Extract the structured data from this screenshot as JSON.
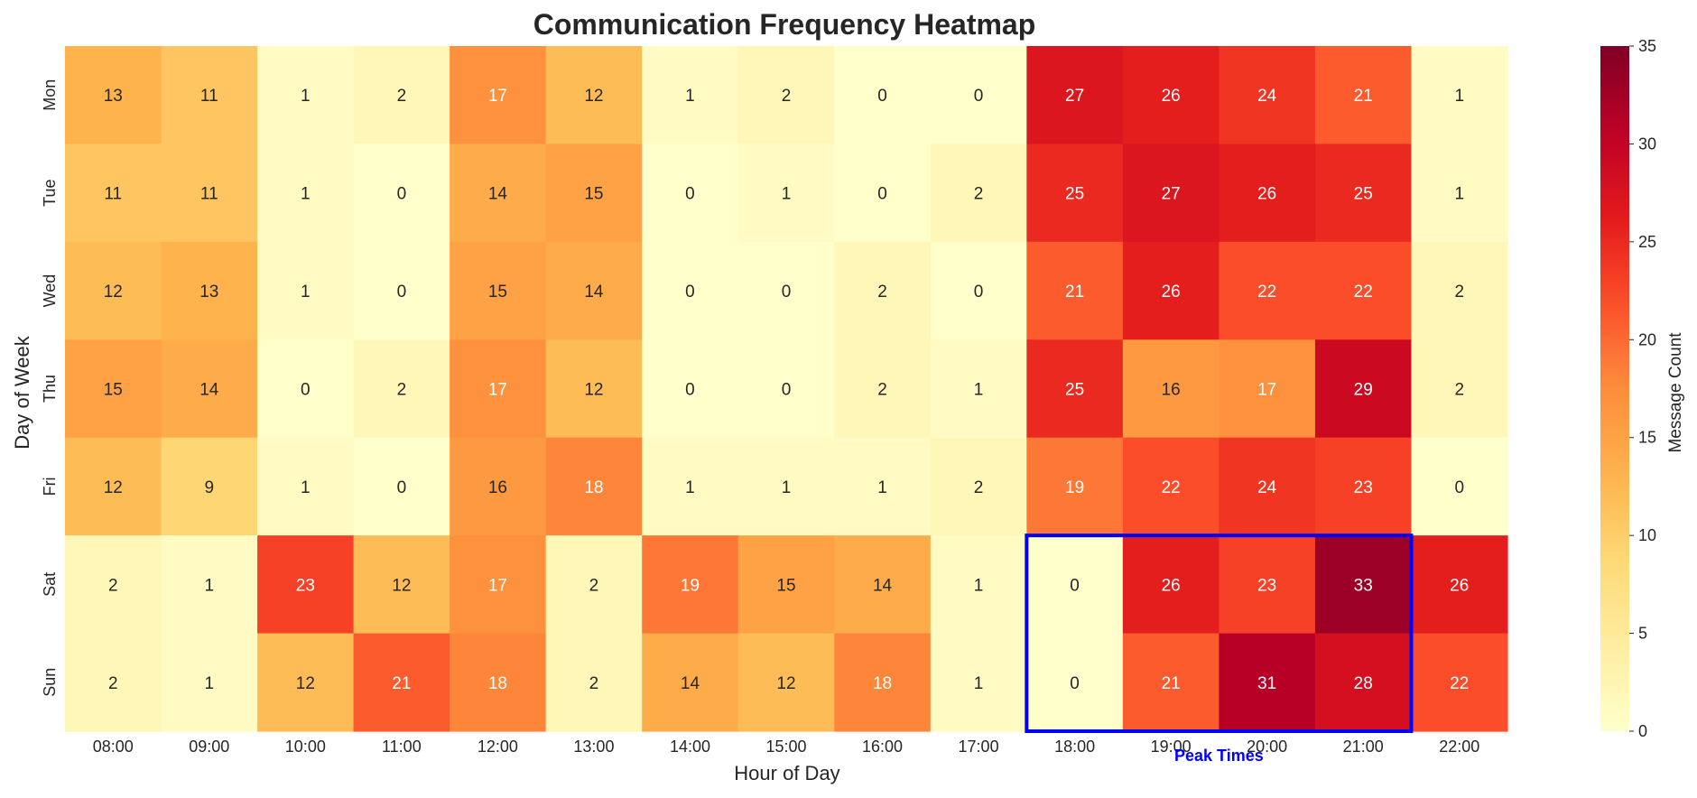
{
  "chart_data": {
    "type": "heatmap",
    "title": "Communication Frequency Heatmap",
    "xlabel": "Hour of Day",
    "ylabel": "Day of Week",
    "x_categories": [
      "08:00",
      "09:00",
      "10:00",
      "11:00",
      "12:00",
      "13:00",
      "14:00",
      "15:00",
      "16:00",
      "17:00",
      "18:00",
      "19:00",
      "20:00",
      "21:00",
      "22:00"
    ],
    "y_categories": [
      "Mon",
      "Tue",
      "Wed",
      "Thu",
      "Fri",
      "Sat",
      "Sun"
    ],
    "values": [
      [
        13,
        11,
        1,
        2,
        17,
        12,
        1,
        2,
        0,
        0,
        27,
        26,
        24,
        21,
        1
      ],
      [
        11,
        11,
        1,
        0,
        14,
        15,
        0,
        1,
        0,
        2,
        25,
        27,
        26,
        25,
        1
      ],
      [
        12,
        13,
        1,
        0,
        15,
        14,
        0,
        0,
        2,
        0,
        21,
        26,
        22,
        22,
        2
      ],
      [
        15,
        14,
        0,
        2,
        17,
        12,
        0,
        0,
        2,
        1,
        25,
        16,
        17,
        29,
        2
      ],
      [
        12,
        9,
        1,
        0,
        16,
        18,
        1,
        1,
        1,
        2,
        19,
        22,
        24,
        23,
        0
      ],
      [
        2,
        1,
        23,
        12,
        17,
        2,
        19,
        15,
        14,
        1,
        0,
        26,
        23,
        33,
        26
      ],
      [
        2,
        1,
        12,
        21,
        18,
        2,
        14,
        12,
        18,
        1,
        0,
        21,
        31,
        28,
        22
      ]
    ],
    "colormap": "YlOrRd",
    "vmin": 0,
    "vmax": 35,
    "colorbar": {
      "label": "Message Count",
      "ticks": [
        0,
        5,
        10,
        15,
        20,
        25,
        30,
        35
      ]
    },
    "annotation": {
      "text": "Peak Times",
      "color": "#0000ff",
      "x_range": [
        "18:00",
        "21:00"
      ],
      "y_range": [
        "Sat",
        "Sun"
      ]
    },
    "grid": false
  }
}
